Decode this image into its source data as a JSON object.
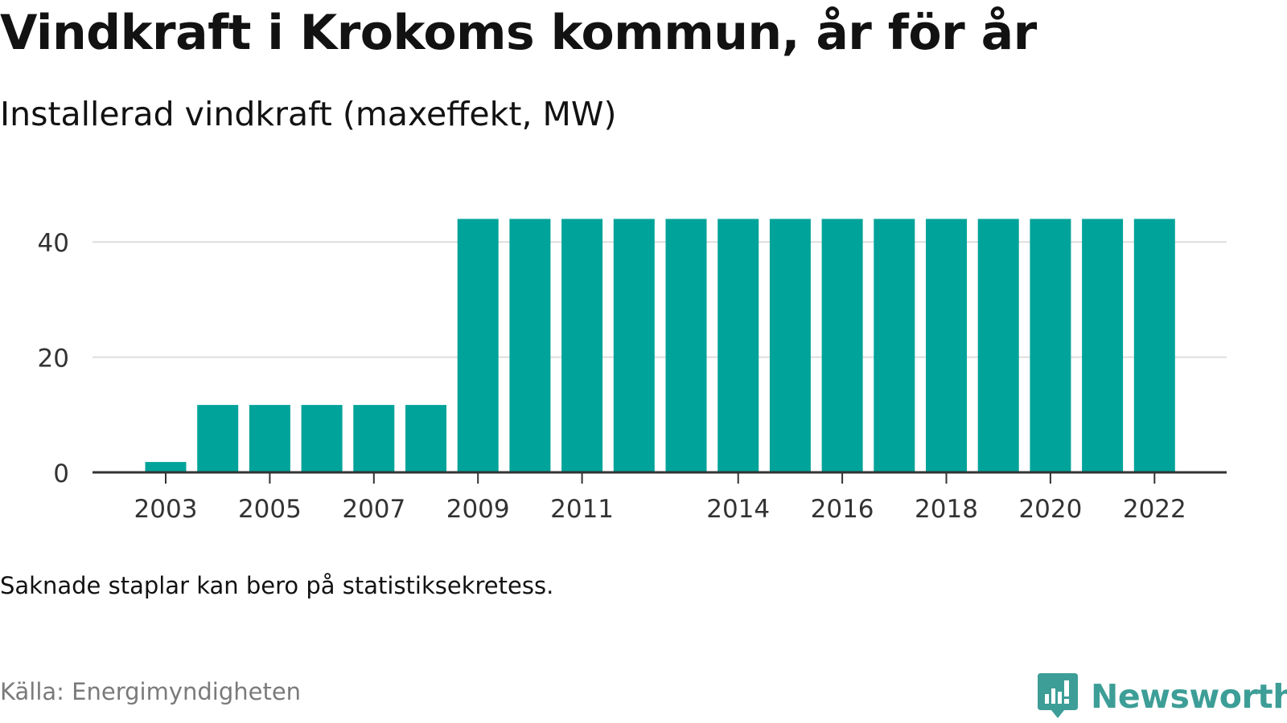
{
  "header": {
    "title": "Vindkraft i Krokoms kommun, år för år",
    "subtitle": "Installerad vindkraft (maxeffekt, MW)"
  },
  "footer": {
    "note": "Saknade staplar kan bero på statistiksekretess.",
    "source": "Källa: Energimyndigheten",
    "brand": "Newsworthy"
  },
  "colors": {
    "bar": "#00a39a",
    "grid": "#dddddd",
    "axis": "#333333",
    "brand": "#3d9e97"
  },
  "chart_data": {
    "type": "bar",
    "categories": [
      "2003",
      "2004",
      "2005",
      "2006",
      "2007",
      "2008",
      "2009",
      "2010",
      "2011",
      "2012",
      "2013",
      "2014",
      "2015",
      "2016",
      "2017",
      "2018",
      "2019",
      "2020",
      "2021",
      "2022"
    ],
    "values": [
      1.8,
      11.7,
      11.7,
      11.7,
      11.7,
      11.7,
      44,
      44,
      44,
      44,
      44,
      44,
      44,
      44,
      44,
      44,
      44,
      44,
      44,
      44
    ],
    "x_tick_labels": [
      "2003",
      "2005",
      "2007",
      "2009",
      "2011",
      "2014",
      "2016",
      "2018",
      "2020",
      "2022"
    ],
    "y_ticks": [
      0,
      20,
      40
    ],
    "ylim": [
      0,
      44
    ],
    "grid": true,
    "legend": false,
    "xlabel": "",
    "ylabel": ""
  }
}
